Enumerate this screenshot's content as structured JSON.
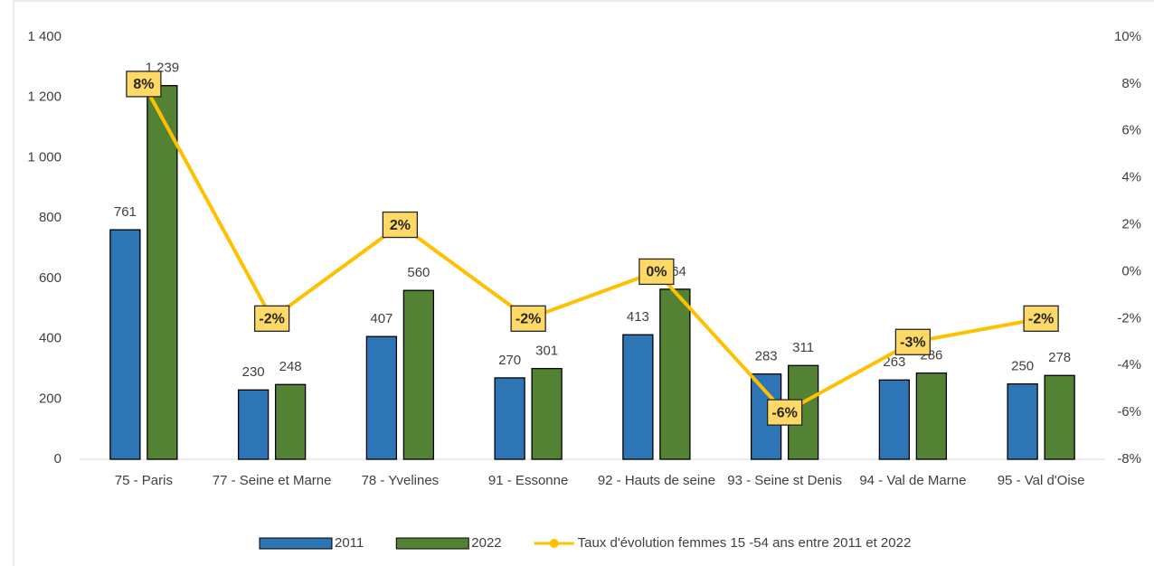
{
  "chart_data": {
    "type": "bar",
    "categories": [
      "75 - Paris",
      "77 - Seine et Marne",
      "78 - Yvelines",
      "91 - Essonne",
      "92 - Hauts de seine",
      "93 - Seine st Denis",
      "94 - Val de Marne",
      "95 - Val d'Oise"
    ],
    "series": [
      {
        "name": "2011",
        "type": "bar",
        "color": "#2e75b6",
        "values": [
          761,
          230,
          407,
          270,
          413,
          283,
          263,
          250
        ]
      },
      {
        "name": "2022",
        "type": "bar",
        "color": "#548235",
        "values": [
          1239,
          248,
          560,
          301,
          564,
          311,
          286,
          278
        ],
        "value_labels": [
          "1 239",
          "248",
          "560",
          "301",
          "564",
          "311",
          "286",
          "278"
        ]
      },
      {
        "name": "Taux d'évolution femmes 15 -54 ans entre 2011 et 2022",
        "type": "line",
        "axis": "y2",
        "color": "#ffc000",
        "values": [
          8,
          -2,
          2,
          -2,
          0,
          -6,
          -3,
          -2
        ],
        "value_labels": [
          "8%",
          "-2%",
          "2%",
          "-2%",
          "0%",
          "-6%",
          "-3%",
          "-2%"
        ]
      }
    ],
    "ylim": [
      0,
      1400
    ],
    "yticks": [
      0,
      200,
      400,
      600,
      800,
      {
        "value": 1000,
        "label": "1 000"
      },
      {
        "value": 1200,
        "label": "1 200"
      },
      {
        "value": 1400,
        "label": "1 400"
      }
    ],
    "y2lim": [
      -8,
      10
    ],
    "y2ticks": [
      {
        "value": -8,
        "label": "-8%"
      },
      {
        "value": -6,
        "label": "-6%"
      },
      {
        "value": -4,
        "label": "-4%"
      },
      {
        "value": -2,
        "label": "-2%"
      },
      {
        "value": 0,
        "label": "0%"
      },
      {
        "value": 2,
        "label": "2%"
      },
      {
        "value": 4,
        "label": "4%"
      },
      {
        "value": 6,
        "label": "6%"
      },
      {
        "value": 8,
        "label": "8%"
      },
      {
        "value": 10,
        "label": "10%"
      }
    ],
    "legend": "bottom"
  }
}
